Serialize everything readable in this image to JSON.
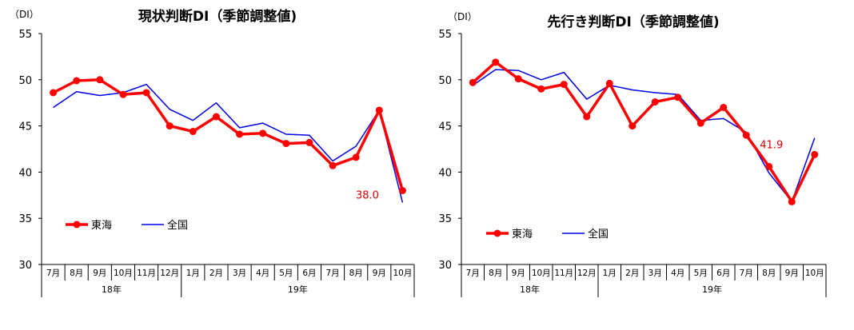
{
  "chart_data": [
    {
      "type": "line",
      "title": "現状判断DI（季節調整値)",
      "unit_label": "（DI）",
      "ylim": [
        30,
        55
      ],
      "yticks": [
        "30",
        "35",
        "40",
        "45",
        "50",
        "55"
      ],
      "categories": [
        "7月",
        "8月",
        "9月",
        "10月",
        "11月",
        "12月",
        "1月",
        "2月",
        "3月",
        "4月",
        "5月",
        "6月",
        "7月",
        "8月",
        "9月",
        "10月"
      ],
      "year_groups": [
        {
          "label": "18年",
          "span": 6
        },
        {
          "label": "19年",
          "span": 10
        }
      ],
      "series": [
        {
          "name": "東海",
          "color": "#ff0000",
          "values": [
            48.6,
            49.9,
            50.0,
            48.4,
            48.6,
            45.0,
            44.4,
            46.0,
            44.1,
            44.2,
            43.1,
            43.2,
            40.7,
            41.6,
            46.7,
            38.0
          ]
        },
        {
          "name": "全国",
          "color": "#0000e6",
          "values": [
            47.0,
            48.7,
            48.3,
            48.6,
            49.5,
            46.8,
            45.6,
            47.5,
            44.8,
            45.3,
            44.1,
            44.0,
            41.2,
            42.8,
            46.7,
            36.7
          ]
        }
      ],
      "data_label": {
        "text": "38.0",
        "series_index": 0,
        "point_index": 15
      },
      "legend_position": "bottom-left"
    },
    {
      "type": "line",
      "title": "先行き判断DI（季節調整値)",
      "unit_label": "（DI）",
      "ylim": [
        30,
        55
      ],
      "yticks": [
        "30",
        "35",
        "40",
        "45",
        "50",
        "55"
      ],
      "categories": [
        "7月",
        "8月",
        "9月",
        "10月",
        "11月",
        "12月",
        "1月",
        "2月",
        "3月",
        "4月",
        "5月",
        "6月",
        "7月",
        "8月",
        "9月",
        "10月"
      ],
      "year_groups": [
        {
          "label": "18年",
          "span": 6
        },
        {
          "label": "19年",
          "span": 10
        }
      ],
      "series": [
        {
          "name": "東海",
          "color": "#ff0000",
          "values": [
            49.7,
            51.9,
            50.1,
            49.0,
            49.5,
            46.0,
            49.6,
            45.0,
            47.6,
            48.1,
            45.3,
            47.0,
            44.0,
            40.6,
            36.8,
            41.9
          ]
        },
        {
          "name": "全国",
          "color": "#0000e6",
          "values": [
            49.4,
            51.1,
            51.0,
            50.0,
            50.8,
            47.9,
            49.4,
            48.9,
            48.6,
            48.4,
            45.6,
            45.8,
            44.3,
            39.9,
            36.8,
            43.7
          ]
        }
      ],
      "data_label": {
        "text": "41.9",
        "series_index": 0,
        "point_index": 15
      },
      "legend_position": "bottom-left"
    }
  ]
}
